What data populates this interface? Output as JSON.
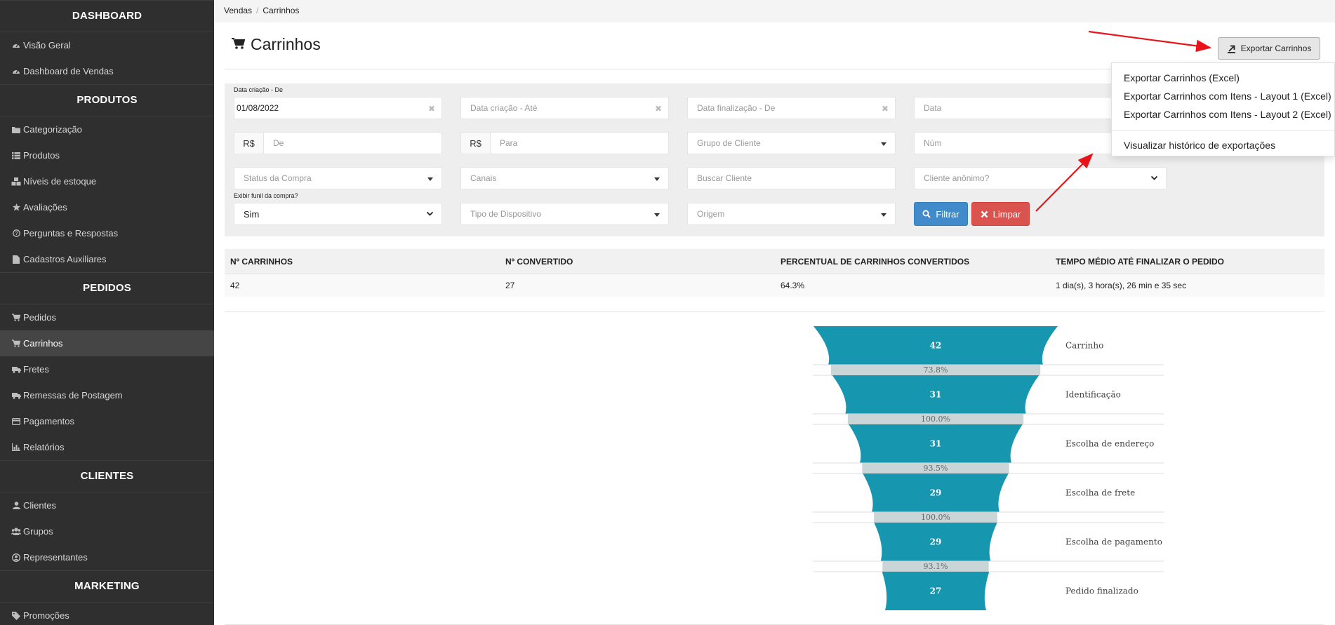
{
  "sidebar": {
    "sections": [
      {
        "title": "DASHBOARD",
        "items": [
          {
            "label": "Visão Geral",
            "icon": "dashboard-icon"
          },
          {
            "label": "Dashboard de Vendas",
            "icon": "dashboard-icon"
          }
        ]
      },
      {
        "title": "PRODUTOS",
        "items": [
          {
            "label": "Categorização",
            "icon": "folder-icon"
          },
          {
            "label": "Produtos",
            "icon": "list-icon"
          },
          {
            "label": "Níveis de estoque",
            "icon": "cubes-icon"
          },
          {
            "label": "Avaliações",
            "icon": "star-icon"
          },
          {
            "label": "Perguntas e Respostas",
            "icon": "question-icon"
          },
          {
            "label": "Cadastros Auxiliares",
            "icon": "file-icon"
          }
        ]
      },
      {
        "title": "PEDIDOS",
        "items": [
          {
            "label": "Pedidos",
            "icon": "cart-icon"
          },
          {
            "label": "Carrinhos",
            "icon": "cart-icon",
            "active": true
          },
          {
            "label": "Fretes",
            "icon": "truck-icon"
          },
          {
            "label": "Remessas de Postagem",
            "icon": "truck-icon"
          },
          {
            "label": "Pagamentos",
            "icon": "credit-card-icon"
          },
          {
            "label": "Relatórios",
            "icon": "bar-chart-icon"
          }
        ]
      },
      {
        "title": "CLIENTES",
        "items": [
          {
            "label": "Clientes",
            "icon": "user-icon"
          },
          {
            "label": "Grupos",
            "icon": "users-icon"
          },
          {
            "label": "Representantes",
            "icon": "user-circle-icon"
          }
        ]
      },
      {
        "title": "MARKETING",
        "items": [
          {
            "label": "Promoções",
            "icon": "tag-icon"
          }
        ]
      }
    ]
  },
  "breadcrumb": {
    "parent": "Vendas",
    "current": "Carrinhos"
  },
  "page": {
    "title": "Carrinhos",
    "title_icon": "cart-icon"
  },
  "export": {
    "button_label": "Exportar Carrinhos",
    "button_icon": "export-icon",
    "menu": [
      "Exportar Carrinhos (Excel)",
      "Exportar Carrinhos com Itens - Layout 1 (Excel)",
      "Exportar Carrinhos com Itens - Layout 2 (Excel)"
    ],
    "history_label": "Visualizar histórico de exportações"
  },
  "filters": {
    "data_criacao_de_label": "Data criação - De",
    "data_criacao_de_value": "01/08/2022",
    "data_criacao_ate_placeholder": "Data criação - Até",
    "data_finalizacao_de_placeholder": "Data finalização - De",
    "data_finalizacao_ate_placeholder": "Data",
    "currency": "R$",
    "valor_de_placeholder": "De",
    "valor_para_placeholder": "Para",
    "grupo_cliente_placeholder": "Grupo de Cliente",
    "numero_placeholder": "Núm",
    "status_compra_placeholder": "Status da Compra",
    "canais_placeholder": "Canais",
    "buscar_cliente_placeholder": "Buscar Cliente",
    "cliente_anonimo_placeholder": "Cliente anônimo?",
    "exibir_funil_label": "Exibir funil da compra?",
    "exibir_funil_value": "Sim",
    "tipo_dispositivo_placeholder": "Tipo de Dispositivo",
    "origem_placeholder": "Origem",
    "filtrar_label": "Filtrar",
    "limpar_label": "Limpar"
  },
  "stats": {
    "headers": [
      "Nº CARRINHOS",
      "Nº CONVERTIDO",
      "PERCENTUAL DE CARRINHOS CONVERTIDOS",
      "TEMPO MÉDIO ATÉ FINALIZAR O PEDIDO"
    ],
    "values": [
      "42",
      "27",
      "64.3%",
      "1 dia(s), 3 hora(s), 26 min e 35 sec"
    ]
  },
  "colors": {
    "sidebar_bg": "#2f2f2f",
    "funnel_bar": "#1796b0",
    "funnel_gap": "#c9d5d7",
    "filter_btn": "#428bca",
    "clear_btn": "#d9534f",
    "annotation_arrow": "#e8141a"
  },
  "chart_data": {
    "type": "funnel",
    "stages": [
      "Carrinho",
      "Identificação",
      "Escolha de endereço",
      "Escolha de frete",
      "Escolha de pagamento",
      "Pedido finalizado"
    ],
    "values": [
      42,
      31,
      31,
      29,
      29,
      27
    ],
    "conversion_rates": [
      "73.8%",
      "100.0%",
      "93.5%",
      "100.0%",
      "93.1%"
    ]
  }
}
